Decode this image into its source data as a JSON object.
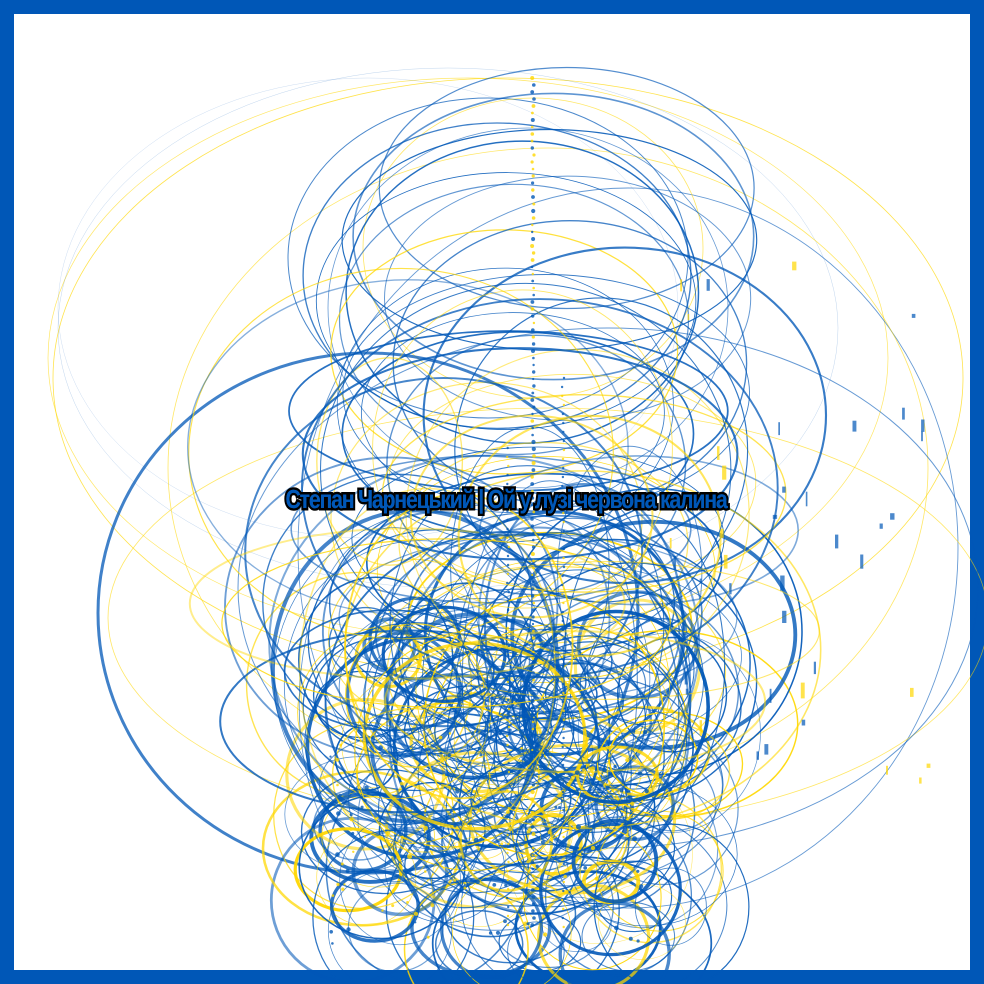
{
  "title": "Степан Чарнецький | Ой у лузі червона калина",
  "colors": {
    "border": "#0057b7",
    "blue": "#0057b7",
    "yellow": "#ffd700",
    "background": "#ffffff",
    "title_outline": "#000000"
  }
}
